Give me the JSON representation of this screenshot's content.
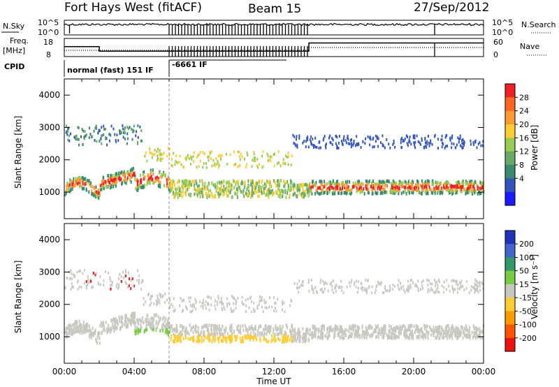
{
  "header": {
    "station": "Fort Hays West (fitACF)",
    "beam": "Beam 15",
    "date": "27/Sep/2012"
  },
  "params": {
    "nsky_label": "N.Sky",
    "nsearch_label": "N.Search",
    "freq_label": "Freq.",
    "freq_unit": "[MHz]",
    "nave_label": "Nave",
    "cpid_label": "CPID",
    "nsky_ticks": [
      "10^5",
      "10^0"
    ],
    "nsearch_ticks": [
      "10^5",
      "10^0"
    ],
    "freq_ticks": [
      "18",
      "8"
    ],
    "nave_ticks": [
      "60",
      "0"
    ],
    "cpid_normal": "normal (fast) 151 IF",
    "cpid_special": "-6661 IF",
    "freq_steps": [
      [
        0,
        13.5
      ],
      [
        2,
        11
      ],
      [
        6,
        11
      ],
      [
        14,
        15.5
      ],
      [
        24,
        15.5
      ]
    ],
    "special_start": 6,
    "special_end": 14
  },
  "chart_data": [
    {
      "type": "heatmap",
      "name": "Power",
      "xlabel": "",
      "ylabel": "Slant Range [km]",
      "y_ticks": [
        "1000",
        "2000",
        "3000",
        "4000"
      ],
      "ylim": [
        180,
        4500
      ],
      "colorbar_title": "Power [dB]",
      "colorbar_ticks": [
        "4",
        "8",
        "12",
        "16",
        "20",
        "24",
        "28"
      ],
      "colorbar_colors": [
        "#1a1aff",
        "#3355bb",
        "#3a8a70",
        "#66aa66",
        "#99cc55",
        "#ffcc33",
        "#ff9933",
        "#ff6622",
        "#ee2222"
      ]
    },
    {
      "type": "heatmap",
      "name": "Velocity",
      "xlabel": "Time UT",
      "ylabel": "Slant Range [km]",
      "y_ticks": [
        "1000",
        "2000",
        "3000",
        "4000"
      ],
      "ylim": [
        180,
        4500
      ],
      "x_ticks": [
        "00:00",
        "04:00",
        "08:00",
        "12:00",
        "16:00",
        "20:00",
        "00:00"
      ],
      "xlim_hours": [
        0,
        24
      ],
      "colorbar_title": "Velocity [m s⁻¹]",
      "colorbar_ticks": [
        "200",
        "100",
        "50",
        "15",
        "-15",
        "-50",
        "-100",
        "-200"
      ],
      "colorbar_colors": [
        "#2233bb",
        "#4466cc",
        "#339966",
        "#77cc44",
        "#c8c8c0",
        "#ffcc33",
        "#ff9900",
        "#ff5500",
        "#ee1111"
      ]
    }
  ]
}
